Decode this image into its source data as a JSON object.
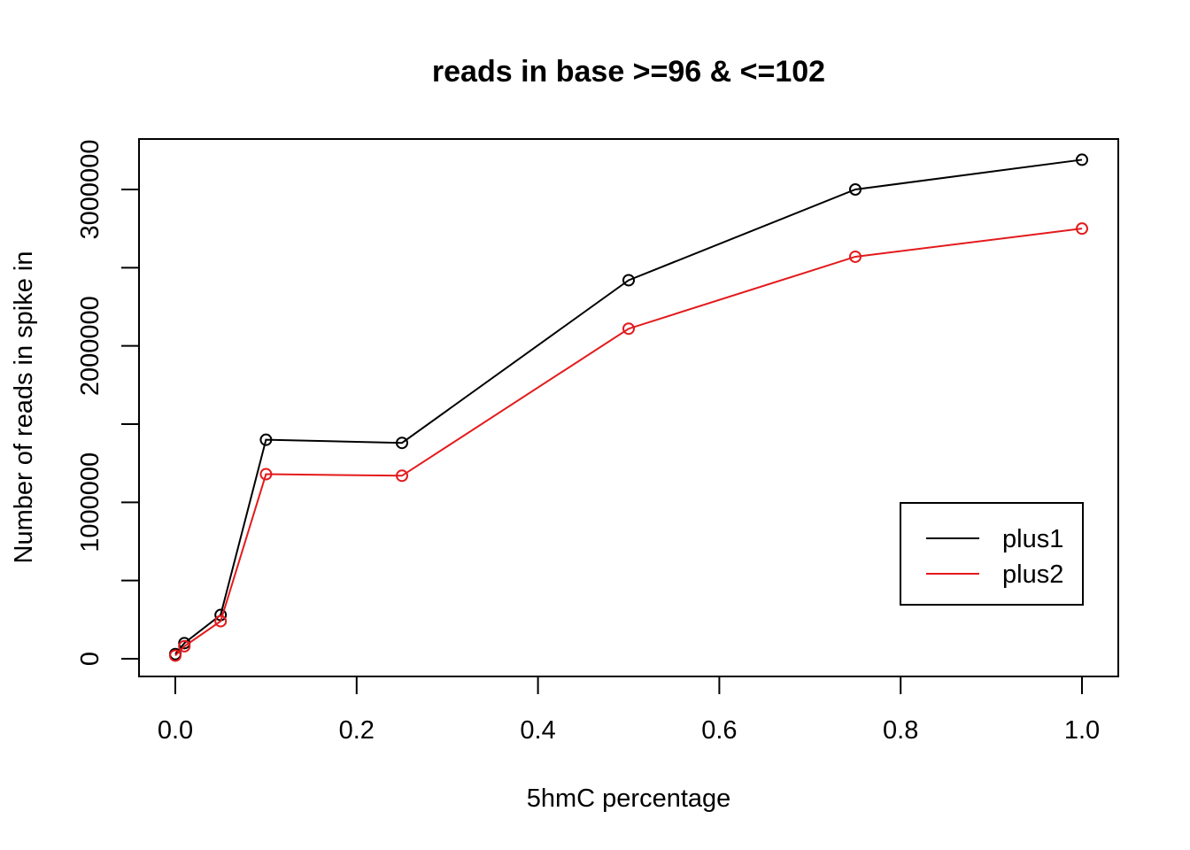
{
  "chart_data": {
    "type": "line",
    "title": "reads in base >=96 & <=102",
    "xlabel": "5hmC percentage",
    "ylabel": "Number of reads in spike in",
    "xlim": [
      0,
      1
    ],
    "ylim": [
      0,
      3200000
    ],
    "x_ticks": [
      0.0,
      0.2,
      0.4,
      0.6,
      0.8,
      1.0
    ],
    "x_tick_labels": [
      "0.0",
      "0.2",
      "0.4",
      "0.6",
      "0.8",
      "1.0"
    ],
    "y_ticks": [
      0,
      500000,
      1000000,
      1500000,
      2000000,
      2500000,
      3000000
    ],
    "y_tick_labels": [
      "0",
      "",
      "1000000",
      "",
      "2000000",
      "",
      "3000000"
    ],
    "grid": false,
    "legend_position": "bottom-right",
    "x": [
      0,
      0.01,
      0.05,
      0.1,
      0.25,
      0.5,
      0.75,
      1.0
    ],
    "series": [
      {
        "name": "plus1",
        "color": "#000000",
        "values": [
          30000,
          100000,
          280000,
          1400000,
          1380000,
          2420000,
          3000000,
          3190000
        ]
      },
      {
        "name": "plus2",
        "color": "#e41a1c",
        "values": [
          20000,
          80000,
          240000,
          1180000,
          1170000,
          2110000,
          2570000,
          2750000
        ]
      }
    ]
  }
}
